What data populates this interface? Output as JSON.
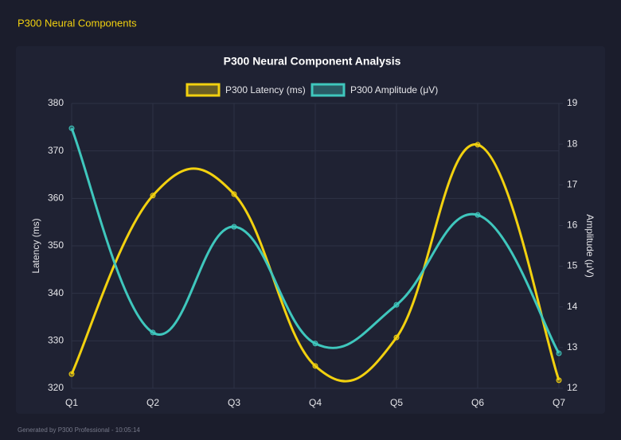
{
  "header": {
    "title": "P300 Neural Components"
  },
  "chart_data": {
    "type": "line",
    "title": "P300 Neural Component Analysis",
    "categories": [
      "Q1",
      "Q2",
      "Q3",
      "Q4",
      "Q5",
      "Q6",
      "Q7"
    ],
    "series": [
      {
        "name": "P300 Latency (ms)",
        "color": "#f2d10f",
        "values": [
          323.0,
          360.6,
          360.9,
          324.7,
          330.7,
          371.3,
          321.7
        ]
      },
      {
        "name": "P300 Amplitude (μV)",
        "color": "#3fc7bd",
        "axis": "y2",
        "values": [
          18.39,
          13.37,
          15.97,
          13.1,
          14.05,
          16.26,
          12.86
        ]
      }
    ],
    "y_label": "Latency (ms)",
    "y2_label": "Amplitude (μV)",
    "ylim": [
      320,
      380
    ],
    "yticks": [
      320,
      330,
      340,
      350,
      360,
      370,
      380
    ],
    "y2lim": [
      12,
      19
    ],
    "y2ticks": [
      12,
      13,
      14,
      15,
      16,
      17,
      18,
      19
    ],
    "grid": true,
    "legend": "top"
  },
  "footer": {
    "text": "Generated by P300 Professional - 10:05:14"
  }
}
